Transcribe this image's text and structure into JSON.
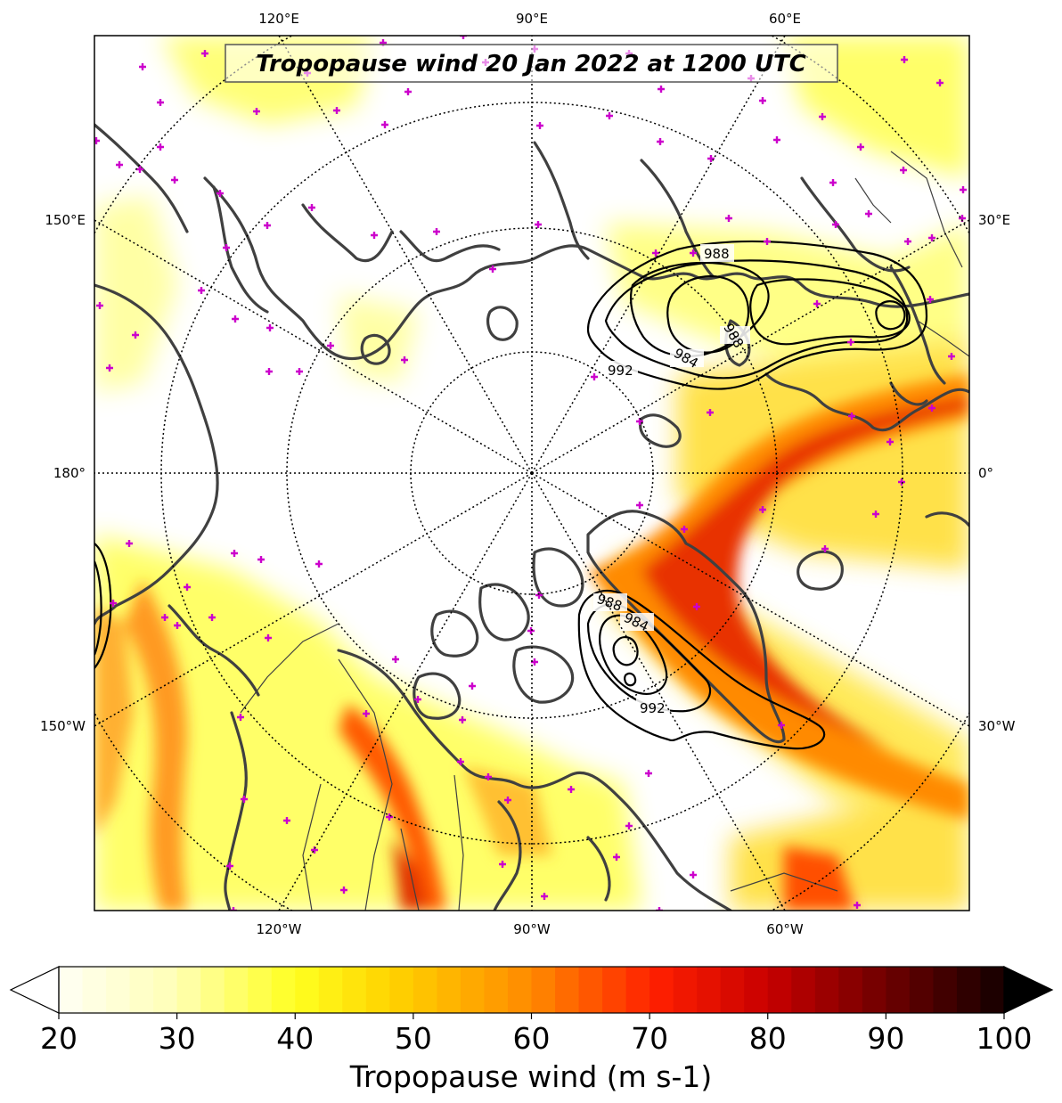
{
  "title": "Tropopause wind 20 Jan 2022 at 1200 UTC",
  "longitude_labels": {
    "top": [
      "120°E",
      "90°E",
      "60°E"
    ],
    "bottom": [
      "120°W",
      "90°W",
      "60°W"
    ],
    "left": [
      "150°E",
      "180°",
      "150°W"
    ],
    "right": [
      "30°E",
      "0°",
      "30°W"
    ]
  },
  "contour_labels": [
    "988",
    "988",
    "984",
    "992",
    "988",
    "984",
    "992"
  ],
  "colorbar": {
    "label": "Tropopause wind (m s-1)",
    "ticks": [
      "20",
      "30",
      "40",
      "50",
      "60",
      "70",
      "80",
      "90",
      "100"
    ],
    "min": 20,
    "max": 100,
    "step": 2,
    "extend": "both",
    "colormap": "hot_r"
  },
  "colors": {
    "coastline": "#404040",
    "contour": "#000000",
    "marker": "#cc00cc",
    "jet_core": "#e03000"
  }
}
